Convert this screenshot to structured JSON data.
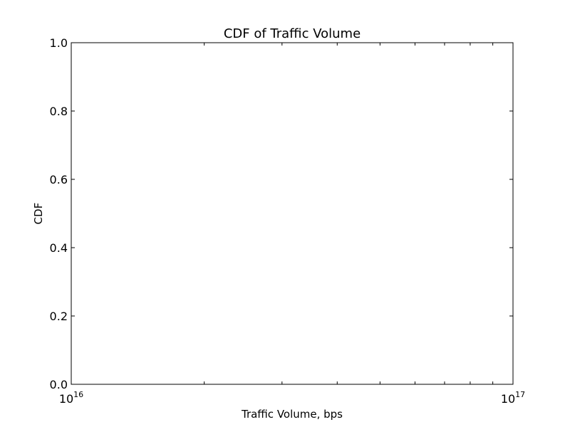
{
  "chart_data": {
    "type": "line",
    "title": "CDF of Traffic Volume",
    "xlabel": "Traffic Volume, bps",
    "ylabel": "CDF",
    "x_scale": "log",
    "xlim": [
      1e+16,
      1e+17
    ],
    "ylim": [
      0.0,
      1.0
    ],
    "x_major_ticks": [
      {
        "value": 1e+16,
        "base": "10",
        "exponent": "16"
      },
      {
        "value": 1e+17,
        "base": "10",
        "exponent": "17"
      }
    ],
    "x_minor_ticks": [
      2e+16,
      3e+16,
      4e+16,
      5e+16,
      6e+16,
      7e+16,
      8e+16,
      9e+16
    ],
    "y_ticks": [
      0.0,
      0.2,
      0.4,
      0.6,
      0.8,
      1.0
    ],
    "y_tick_labels": [
      "0.0",
      "0.2",
      "0.4",
      "0.6",
      "0.8",
      "1.0"
    ],
    "series": [],
    "grid": false,
    "legend": "none"
  },
  "colors": {
    "axes": "#000000",
    "background": "#ffffff"
  }
}
